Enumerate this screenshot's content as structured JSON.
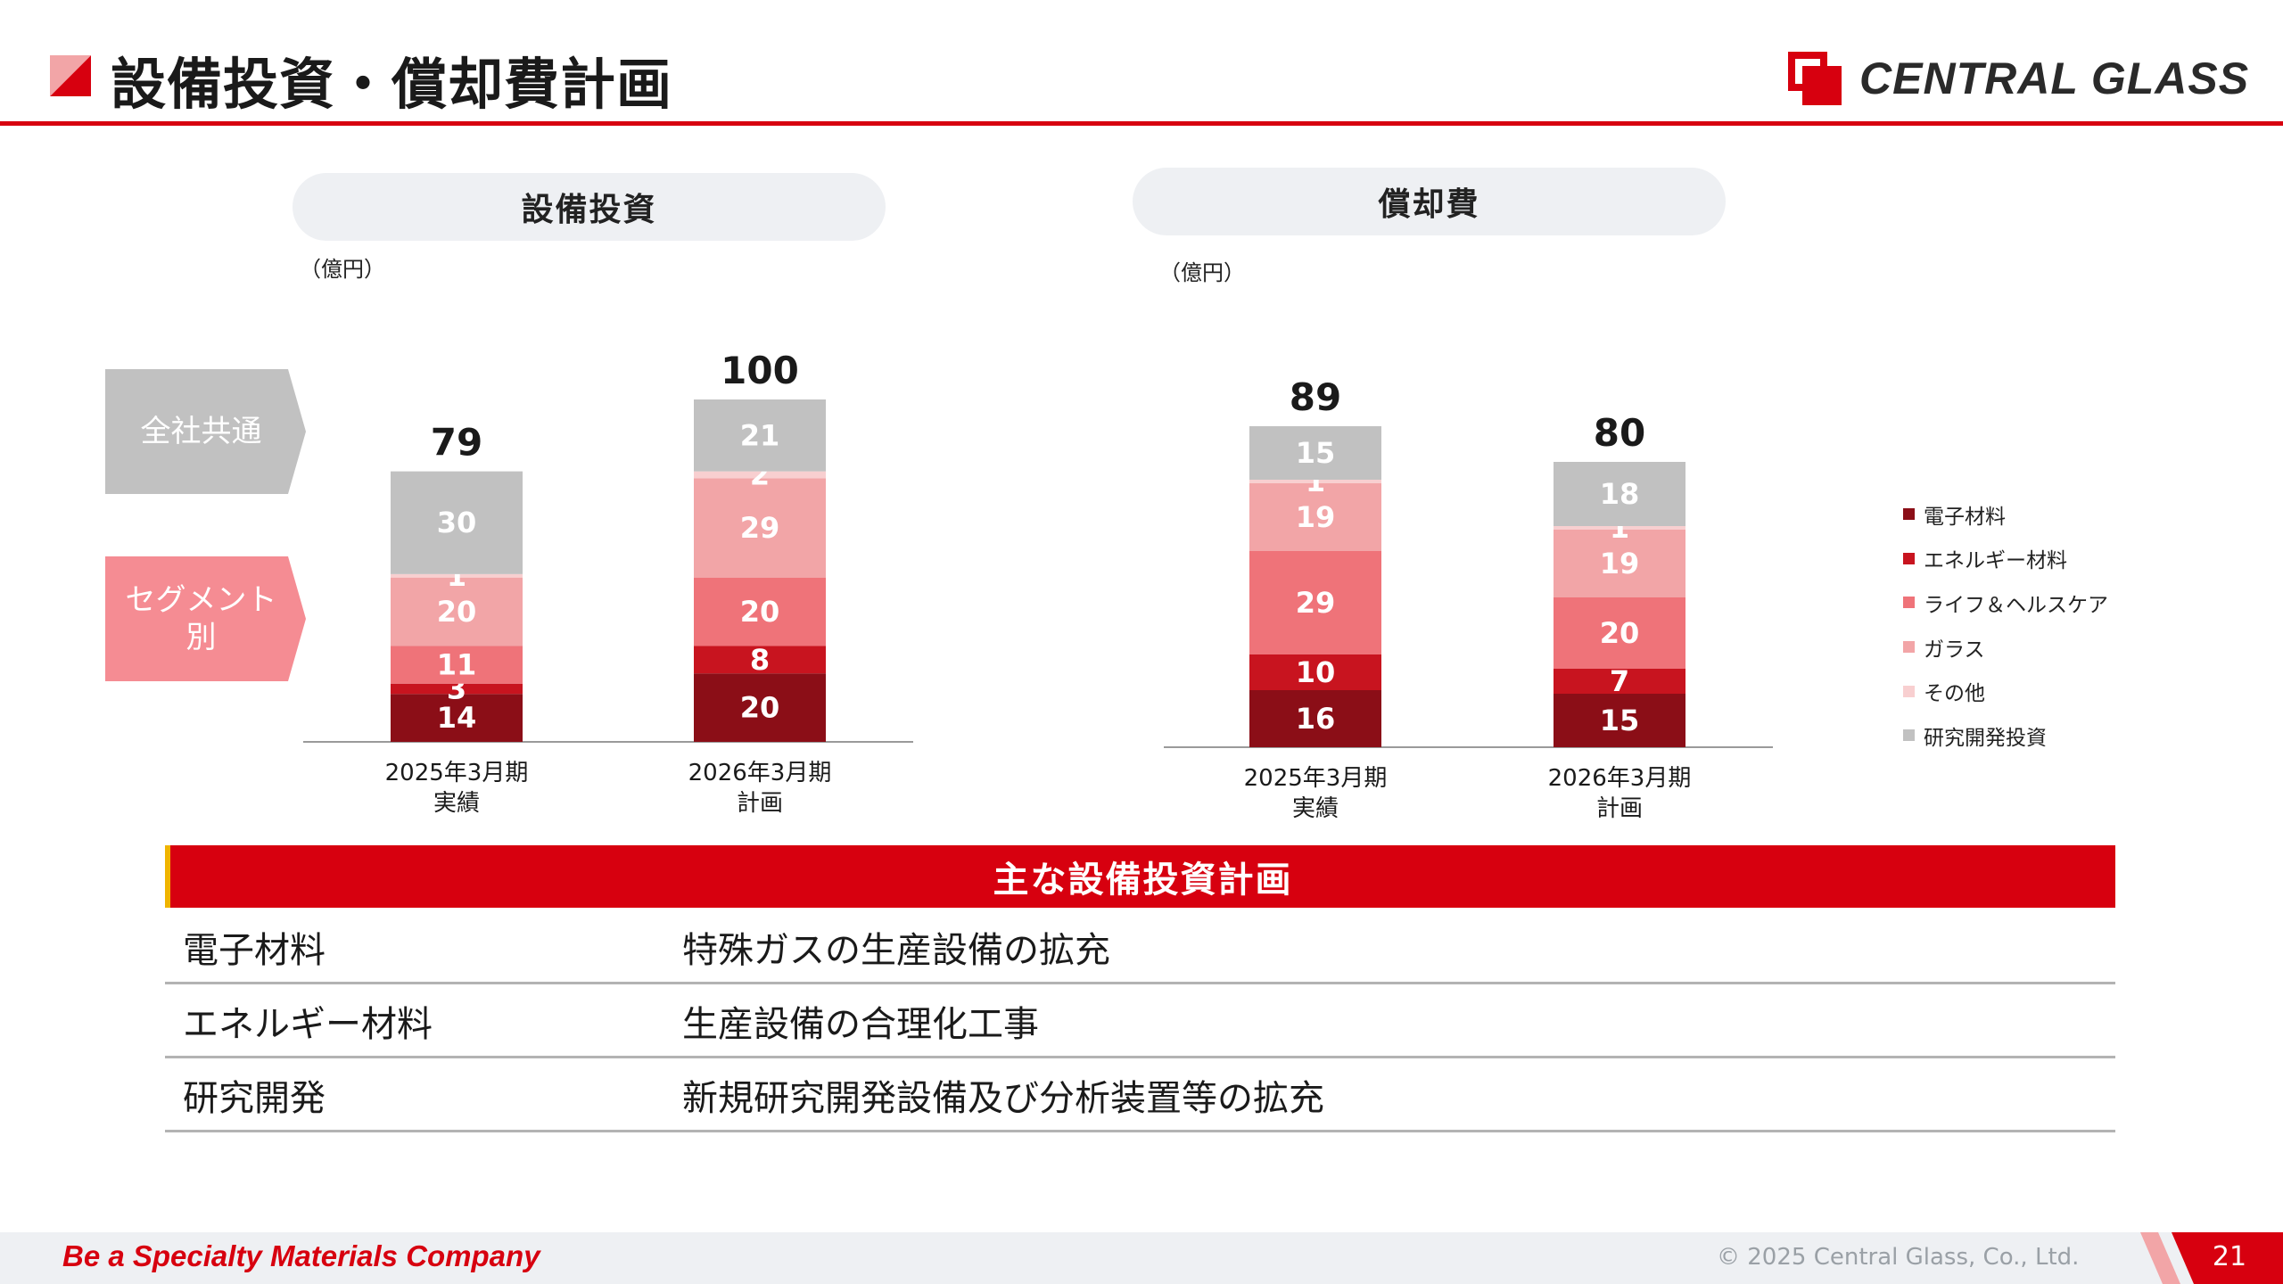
{
  "header": {
    "title": "設備投資・償却費計画",
    "logo_text": "CENTRAL GLASS",
    "accent_color": "#d7000f"
  },
  "side_labels": {
    "common": "全社共通",
    "segment": "セグメント\n別"
  },
  "colors": {
    "電子材料": "#8b0e17",
    "エネルギー材料": "#c8141f",
    "ライフ＆ヘルスケア": "#ef7379",
    "ガラス": "#f2a5a7",
    "その他": "#f8cfd0",
    "研究開発投資": "#c1c1c1"
  },
  "chart_data": [
    {
      "type": "bar",
      "stacked": true,
      "title": "設備投資",
      "unit_label": "（億円）",
      "categories": [
        "2025年3月期\n実績",
        "2026年3月期\n計画"
      ],
      "series": [
        {
          "name": "電子材料",
          "values": [
            14,
            20
          ]
        },
        {
          "name": "エネルギー材料",
          "values": [
            3,
            8
          ]
        },
        {
          "name": "ライフ＆ヘルスケア",
          "values": [
            11,
            20
          ]
        },
        {
          "name": "ガラス",
          "values": [
            20,
            29
          ]
        },
        {
          "name": "その他",
          "values": [
            1,
            2
          ]
        },
        {
          "name": "研究開発投資",
          "values": [
            30,
            21
          ]
        }
      ],
      "totals": [
        79,
        100
      ]
    },
    {
      "type": "bar",
      "stacked": true,
      "title": "償却費",
      "unit_label": "（億円）",
      "categories": [
        "2025年3月期\n実績",
        "2026年3月期\n計画"
      ],
      "series": [
        {
          "name": "電子材料",
          "values": [
            16,
            15
          ]
        },
        {
          "name": "エネルギー材料",
          "values": [
            10,
            7
          ]
        },
        {
          "name": "ライフ＆ヘルスケア",
          "values": [
            29,
            20
          ]
        },
        {
          "name": "ガラス",
          "values": [
            19,
            19
          ]
        },
        {
          "name": "その他",
          "values": [
            1,
            1
          ]
        },
        {
          "name": "研究開発投資",
          "values": [
            15,
            18
          ]
        }
      ],
      "totals": [
        89,
        80
      ]
    }
  ],
  "legend": [
    "電子材料",
    "エネルギー材料",
    "ライフ＆ヘルスケア",
    "ガラス",
    "その他",
    "研究開発投資"
  ],
  "plans": {
    "title": "主な設備投資計画",
    "rows": [
      {
        "category": "電子材料",
        "description": "特殊ガスの生産設備の拡充"
      },
      {
        "category": "エネルギー材料",
        "description": "生産設備の合理化工事"
      },
      {
        "category": "研究開発",
        "description": "新規研究開発設備及び分析装置等の拡充"
      }
    ]
  },
  "footer": {
    "tagline": "Be a Specialty Materials Company",
    "copyright": "© 2025 Central Glass, Co., Ltd.",
    "page_number": "21"
  }
}
